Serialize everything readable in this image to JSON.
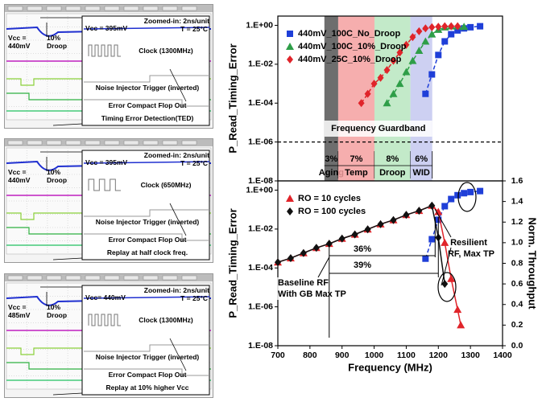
{
  "panels": [
    {
      "vcc": "Vcc = 440mV",
      "droop": "10% Droop",
      "zoom": "Zoomed-in: 2ns/unit",
      "vcc_zoom": "Vcc = 395mV",
      "temp": "T = 25°C",
      "clock": "Clock (1300MHz)",
      "trigger": "Noise Injector Trigger (inverted)",
      "flop": "Error Compact Flop Out",
      "caption": "Timing Error Detection(TED)"
    },
    {
      "vcc": "Vcc = 440mV",
      "droop": "10% Droop",
      "zoom": "Zoomed-in: 2ns/unit",
      "vcc_zoom": "Vcc = 395mV",
      "temp": "T = 25°C",
      "clock": "Clock (650MHz)",
      "trigger": "Noise Injector Trigger (inverted)",
      "flop": "Error Compact Flop Out",
      "caption": "Replay at half clock freq."
    },
    {
      "vcc": "Vcc = 485mV",
      "droop": "10% Droop",
      "zoom": "Zoomed-in: 2ns/unit",
      "vcc_zoom": "Vcc= 440mV",
      "temp": "T = 25°C",
      "clock": "Clock (1300MHz)",
      "trigger": "Noise Injector Trigger (inverted)",
      "flop": "Error Compact Flop Out",
      "caption": "Replay at 10% higher Vcc"
    }
  ],
  "chart_data": [
    {
      "type": "line",
      "y_label": "P_Read_Timing_Error",
      "log_y": true,
      "xlim": [
        700,
        1400
      ],
      "ylim": [
        1e-08,
        3
      ],
      "yticks": [
        {
          "value": 1,
          "label": "1.E+00"
        },
        {
          "value": 0.01,
          "label": "1.E-02"
        },
        {
          "value": 0.0001,
          "label": "1.E-04"
        },
        {
          "value": 1e-06,
          "label": "1.E-06"
        },
        {
          "value": 1e-08,
          "label": "1.E-08"
        }
      ],
      "threshold": 1e-06,
      "guardband_label": "Frequency  Guardband",
      "bands": [
        {
          "label": "Aging",
          "pct": "3%",
          "range": [
            845,
            888
          ],
          "color": "#555555"
        },
        {
          "label": "Temp",
          "pct": "7%",
          "range": [
            888,
            1001
          ],
          "color": "#f4a0a0"
        },
        {
          "label": "Droop",
          "pct": "8%",
          "range": [
            1001,
            1113
          ],
          "color": "#b8e6c0"
        },
        {
          "label": "WID",
          "pct": "6%",
          "range": [
            1113,
            1181
          ],
          "color": "#c4c8f0"
        }
      ],
      "series": [
        {
          "name": "440mV_100C_No_Droop",
          "color": "#1f3fd8",
          "marker": "square",
          "x": [
            1160,
            1180,
            1200,
            1220,
            1240,
            1260,
            1280,
            1300,
            1330
          ],
          "values": [
            0.0003,
            0.003,
            0.03,
            0.15,
            0.35,
            0.55,
            0.7,
            0.8,
            0.9
          ]
        },
        {
          "name": "440mV_100C_10%_Droop",
          "color": "#2e9e48",
          "marker": "triangle",
          "x": [
            1040,
            1060,
            1080,
            1100,
            1120,
            1140,
            1160,
            1180,
            1200,
            1220,
            1240,
            1260,
            1280
          ],
          "values": [
            0.0001,
            0.0003,
            0.001,
            0.004,
            0.015,
            0.05,
            0.15,
            0.35,
            0.6,
            0.8,
            0.9,
            0.9,
            0.85
          ]
        },
        {
          "name": "440mV_25C_10%_Droop",
          "color": "#e0242a",
          "marker": "diamond",
          "x": [
            960,
            980,
            1000,
            1020,
            1040,
            1060,
            1080,
            1100,
            1120,
            1140,
            1160,
            1180,
            1200,
            1220,
            1240,
            1260
          ],
          "values": [
            0.0001,
            0.0003,
            0.001,
            0.002,
            0.005,
            0.015,
            0.04,
            0.1,
            0.25,
            0.5,
            0.7,
            0.8,
            0.85,
            0.9,
            0.9,
            0.9
          ]
        }
      ]
    },
    {
      "type": "line",
      "y_label": "P_Read_Timing_Error",
      "y2_label": "Norm. Throughput",
      "x_label": "Frequency (MHz)",
      "log_y": true,
      "xlim": [
        700,
        1400
      ],
      "ylim": [
        1e-08,
        3
      ],
      "y2lim": [
        0,
        1.6
      ],
      "xticks": [
        700,
        800,
        900,
        1000,
        1100,
        1200,
        1300,
        1400
      ],
      "yticks": [
        {
          "value": 1,
          "label": "1.E+00"
        },
        {
          "value": 0.01,
          "label": "1.E-02"
        },
        {
          "value": 0.0001,
          "label": "1.E-04"
        },
        {
          "value": 1e-06,
          "label": "1.E-06"
        },
        {
          "value": 1e-08,
          "label": "1.E-08"
        }
      ],
      "y2ticks": [
        {
          "value": 0,
          "label": "0.0"
        },
        0.2,
        0.4,
        0.6,
        0.8,
        {
          "value": 1,
          "label": "1.0"
        },
        1.2,
        1.4,
        1.6
      ],
      "annotations": [
        "36%",
        "39%",
        "Baseline RF",
        "With GB Max TP",
        "Resilient",
        "RF, Max TP"
      ],
      "series": [
        {
          "color": "#1f3fd8",
          "marker": "square",
          "x": [
            1160,
            1180,
            1200,
            1220,
            1240,
            1260,
            1280,
            1300,
            1330
          ],
          "values": [
            0.0003,
            0.003,
            0.03,
            0.15,
            0.35,
            0.55,
            0.7,
            0.8,
            0.9
          ]
        },
        {
          "name": "RO = 10 cycles",
          "color": "#e0242a",
          "marker": "triangle",
          "axis": "y2",
          "x": [
            700,
            740,
            780,
            820,
            860,
            900,
            940,
            980,
            1020,
            1060,
            1100,
            1140,
            1180,
            1200,
            1220,
            1240,
            1260,
            1270
          ],
          "values": [
            0.81,
            0.85,
            0.9,
            0.95,
            0.99,
            1.04,
            1.08,
            1.13,
            1.18,
            1.22,
            1.27,
            1.31,
            1.36,
            1.3,
            1.0,
            0.65,
            0.35,
            0.2
          ]
        },
        {
          "name": "RO = 100 cycles",
          "color": "#111111",
          "marker": "diamond",
          "axis": "y2",
          "x": [
            700,
            740,
            780,
            820,
            860,
            900,
            940,
            980,
            1020,
            1060,
            1100,
            1140,
            1180,
            1200,
            1220
          ],
          "values": [
            0.81,
            0.85,
            0.9,
            0.95,
            0.99,
            1.04,
            1.08,
            1.13,
            1.18,
            1.22,
            1.27,
            1.31,
            1.36,
            1.05,
            0.6
          ]
        }
      ]
    }
  ]
}
